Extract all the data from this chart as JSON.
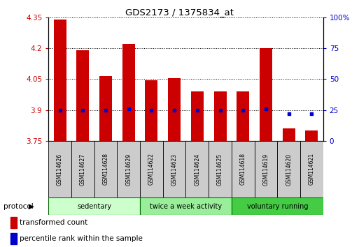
{
  "title": "GDS2173 / 1375834_at",
  "samples": [
    "GSM114626",
    "GSM114627",
    "GSM114628",
    "GSM114629",
    "GSM114622",
    "GSM114623",
    "GSM114624",
    "GSM114625",
    "GSM114618",
    "GSM114619",
    "GSM114620",
    "GSM114621"
  ],
  "transformed_count": [
    4.34,
    4.19,
    4.065,
    4.22,
    4.045,
    4.055,
    3.99,
    3.99,
    3.99,
    4.2,
    3.81,
    3.8
  ],
  "percentile_rank": [
    25,
    25,
    25,
    26,
    25,
    25,
    25,
    25,
    25,
    26,
    22,
    22
  ],
  "ylim_left": [
    3.75,
    4.35
  ],
  "ylim_right": [
    0,
    100
  ],
  "yticks_left": [
    3.75,
    3.9,
    4.05,
    4.2,
    4.35
  ],
  "yticks_right": [
    0,
    25,
    50,
    75,
    100
  ],
  "ytick_labels_right": [
    "0",
    "25",
    "50",
    "75",
    "100%"
  ],
  "bar_color": "#cc0000",
  "dot_color": "#0000cc",
  "bar_bottom": 3.75,
  "groups": [
    {
      "label": "sedentary",
      "indices": [
        0,
        1,
        2,
        3
      ],
      "color": "#ccffcc"
    },
    {
      "label": "twice a week activity",
      "indices": [
        4,
        5,
        6,
        7
      ],
      "color": "#99ee99"
    },
    {
      "label": "voluntary running",
      "indices": [
        8,
        9,
        10,
        11
      ],
      "color": "#44cc44"
    }
  ],
  "protocol_label": "protocol",
  "legend_bar_label": "transformed count",
  "legend_dot_label": "percentile rank within the sample",
  "tick_color_left": "#cc0000",
  "tick_color_right": "#0000cc",
  "grid_color": "#000000",
  "sample_box_color": "#cccccc",
  "bg_color": "#ffffff"
}
